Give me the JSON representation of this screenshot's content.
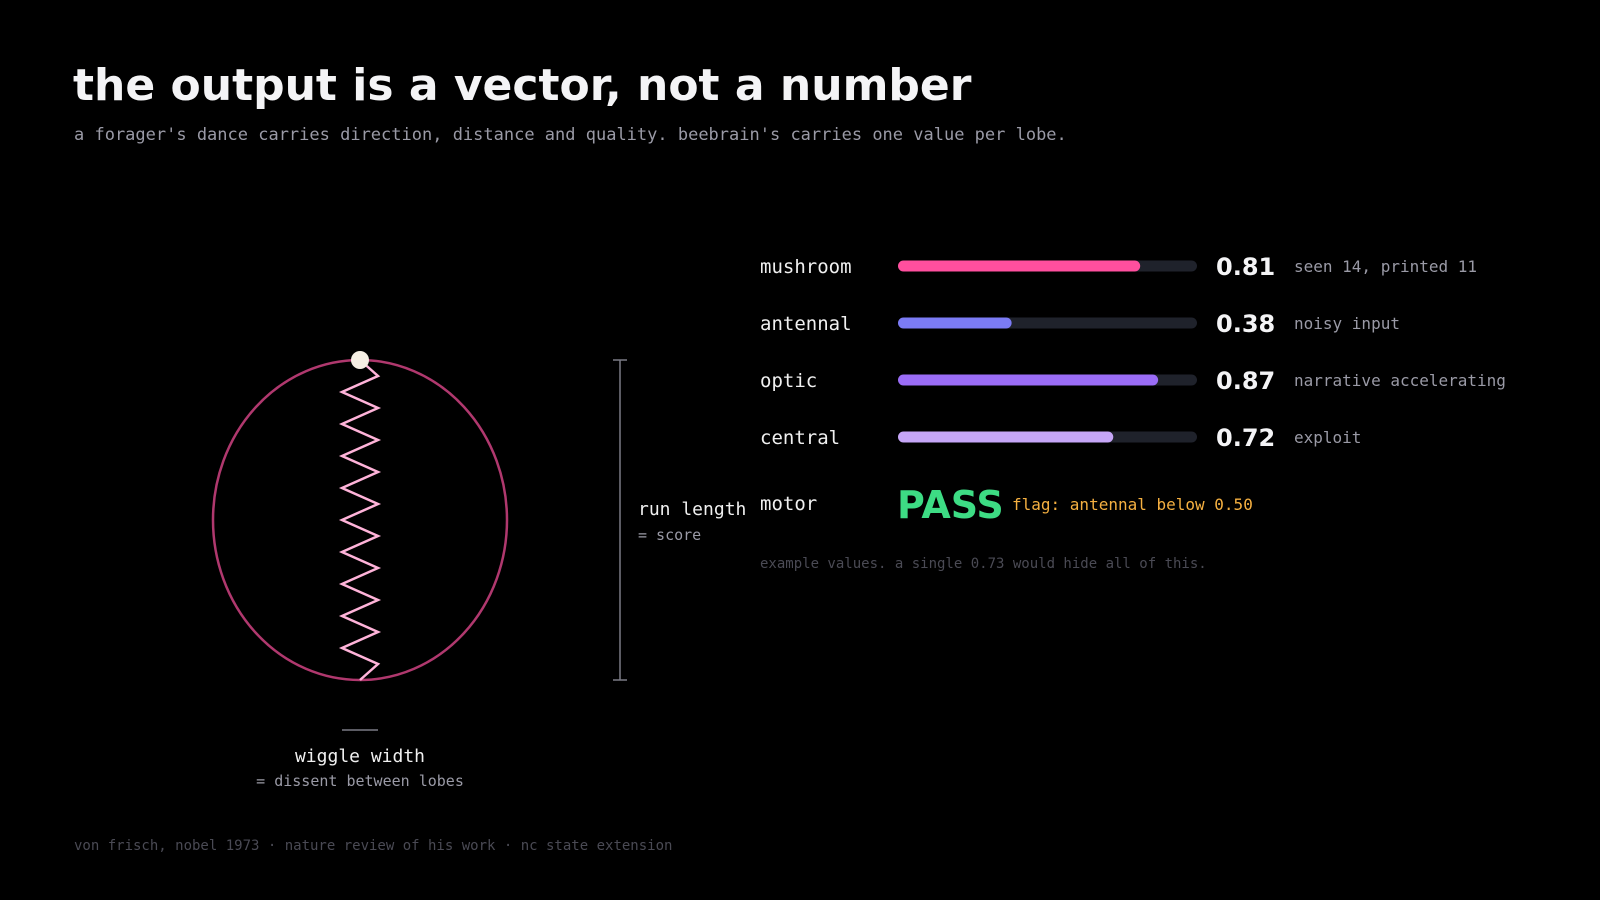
{
  "header": {
    "title": "the output is a vector, not a number",
    "subtitle": "a forager's dance carries direction, distance and quality. beebrain's carries one value per lobe."
  },
  "dance": {
    "run_label": "run length",
    "run_sub": "= score",
    "wiggle_label": "wiggle width",
    "wiggle_sub": "= dissent between lobes"
  },
  "lobes": [
    {
      "name": "mushroom",
      "value": 0.81,
      "color": "#ff4f9e",
      "note": "seen 14, printed 11"
    },
    {
      "name": "antennal",
      "value": 0.38,
      "color": "#7b7bf5",
      "note": "noisy input"
    },
    {
      "name": "optic",
      "value": 0.87,
      "color": "#9a6cf6",
      "note": "narrative accelerating"
    },
    {
      "name": "central",
      "value": 0.72,
      "color": "#c6a6f7",
      "note": "exploit"
    }
  ],
  "motor": {
    "label": "motor",
    "status": "PASS",
    "flag": "flag: antennal below 0.50"
  },
  "note": "example values. a single 0.73 would hide all of this.",
  "footer": "von frisch, nobel 1973 · nature review of his work · nc state extension"
}
